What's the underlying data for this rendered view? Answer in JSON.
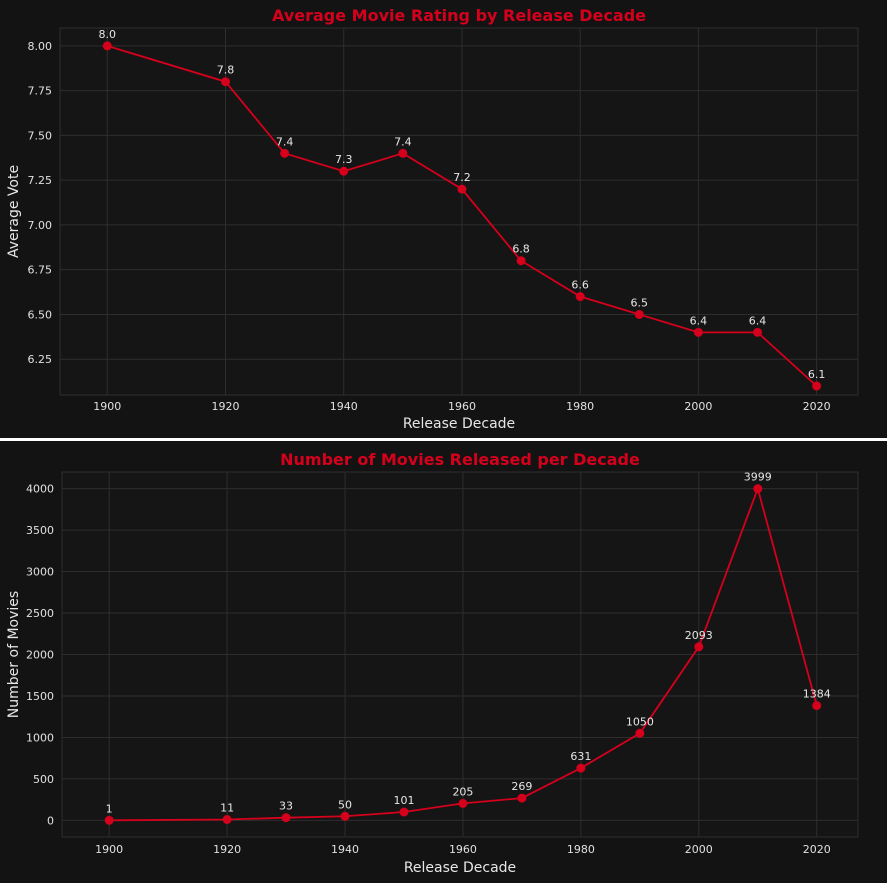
{
  "colors": {
    "background": "#131313",
    "plot_background": "#151515",
    "grid": "#2e2e2e",
    "accent": "#d4001c",
    "text": "#e6e6e6",
    "separator": "#ffffff"
  },
  "chart_data": [
    {
      "type": "line",
      "title": "Average Movie Rating by Release Decade",
      "xlabel": "Release Decade",
      "ylabel": "Average Vote",
      "xlim": [
        1892,
        2027
      ],
      "ylim": [
        6.05,
        8.1
      ],
      "xticks": [
        1900,
        1920,
        1940,
        1960,
        1980,
        2000,
        2020
      ],
      "yticks": [
        6.25,
        6.5,
        6.75,
        7.0,
        7.25,
        7.5,
        7.75,
        8.0
      ],
      "ytick_labels": [
        "6.25",
        "6.50",
        "6.75",
        "7.00",
        "7.25",
        "7.50",
        "7.75",
        "8.00"
      ],
      "grid": true,
      "x": [
        1900,
        1920,
        1930,
        1940,
        1950,
        1960,
        1970,
        1980,
        1990,
        2000,
        2010,
        2020
      ],
      "series": [
        {
          "values": [
            8.0,
            7.8,
            7.4,
            7.3,
            7.4,
            7.2,
            6.8,
            6.6,
            6.5,
            6.4,
            6.4,
            6.1
          ],
          "labels": [
            "8.0",
            "7.8",
            "7.4",
            "7.3",
            "7.4",
            "7.2",
            "6.8",
            "6.6",
            "6.5",
            "6.4",
            "6.4",
            "6.1"
          ]
        }
      ]
    },
    {
      "type": "line",
      "title": "Number of Movies Released per Decade",
      "xlabel": "Release Decade",
      "ylabel": "Number of Movies",
      "xlim": [
        1892,
        2027
      ],
      "ylim": [
        -200,
        4200
      ],
      "xticks": [
        1900,
        1920,
        1940,
        1960,
        1980,
        2000,
        2020
      ],
      "yticks": [
        0,
        500,
        1000,
        1500,
        2000,
        2500,
        3000,
        3500,
        4000
      ],
      "ytick_labels": [
        "0",
        "500",
        "1000",
        "1500",
        "2000",
        "2500",
        "3000",
        "3500",
        "4000"
      ],
      "grid": true,
      "x": [
        1900,
        1920,
        1930,
        1940,
        1950,
        1960,
        1970,
        1980,
        1990,
        2000,
        2010,
        2020
      ],
      "series": [
        {
          "values": [
            1,
            11,
            33,
            50,
            101,
            205,
            269,
            631,
            1050,
            2093,
            3999,
            1384
          ],
          "labels": [
            "1",
            "11",
            "33",
            "50",
            "101",
            "205",
            "269",
            "631",
            "1050",
            "2093",
            "3999",
            "1384"
          ]
        }
      ]
    }
  ]
}
